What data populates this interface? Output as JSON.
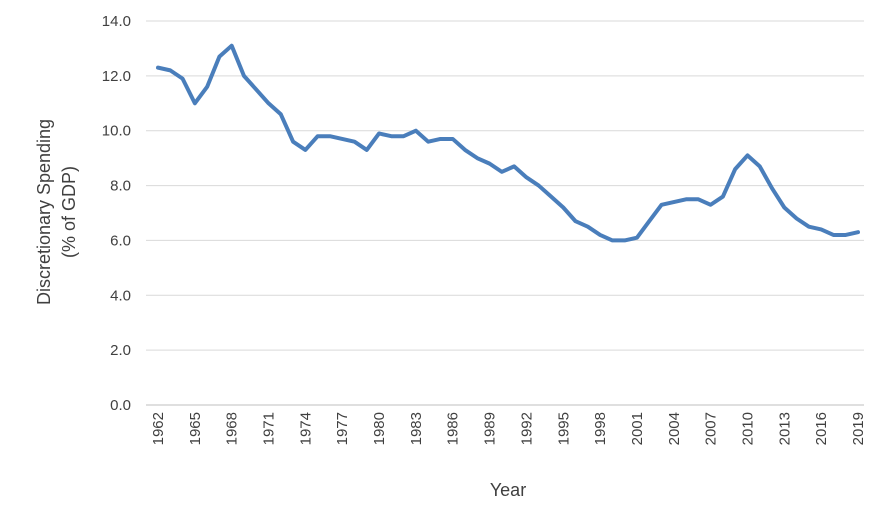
{
  "chart_data": {
    "type": "line",
    "title": "",
    "xlabel": "Year",
    "ylabel_lines": [
      "Discretionary Spending",
      "(% of GDP)"
    ],
    "ylim": [
      0,
      14
    ],
    "y_ticks": [
      "0.0",
      "2.0",
      "4.0",
      "6.0",
      "8.0",
      "10.0",
      "12.0",
      "14.0"
    ],
    "x_tick_labels": [
      "1962",
      "1965",
      "1968",
      "1971",
      "1974",
      "1977",
      "1980",
      "1983",
      "1986",
      "1989",
      "1992",
      "1995",
      "1998",
      "2001",
      "2004",
      "2007",
      "2010",
      "2013",
      "2016",
      "2019"
    ],
    "grid": "horizontal",
    "legend": "none",
    "color": "#4a7ebb",
    "series": [
      {
        "x": [
          1962,
          1963,
          1964,
          1965,
          1966,
          1967,
          1968,
          1969,
          1970,
          1971,
          1972,
          1973,
          1974,
          1975,
          1976,
          1977,
          1978,
          1979,
          1980,
          1981,
          1982,
          1983,
          1984,
          1985,
          1986,
          1987,
          1988,
          1989,
          1990,
          1991,
          1992,
          1993,
          1994,
          1995,
          1996,
          1997,
          1998,
          1999,
          2000,
          2001,
          2002,
          2003,
          2004,
          2005,
          2006,
          2007,
          2008,
          2009,
          2010,
          2011,
          2012,
          2013,
          2014,
          2015,
          2016,
          2017,
          2018,
          2019
        ],
        "values": [
          12.3,
          12.2,
          11.9,
          11.0,
          11.6,
          12.7,
          13.1,
          12.0,
          11.5,
          11.0,
          10.6,
          9.6,
          9.3,
          9.8,
          9.8,
          9.7,
          9.6,
          9.3,
          9.9,
          9.8,
          9.8,
          10.0,
          9.6,
          9.7,
          9.7,
          9.3,
          9.0,
          8.8,
          8.5,
          8.7,
          8.3,
          8.0,
          7.6,
          7.2,
          6.7,
          6.5,
          6.2,
          6.0,
          6.0,
          6.1,
          6.7,
          7.3,
          7.4,
          7.5,
          7.5,
          7.3,
          7.6,
          8.6,
          9.1,
          8.7,
          7.9,
          7.2,
          6.8,
          6.5,
          6.4,
          6.2,
          6.2,
          6.3
        ]
      }
    ]
  }
}
